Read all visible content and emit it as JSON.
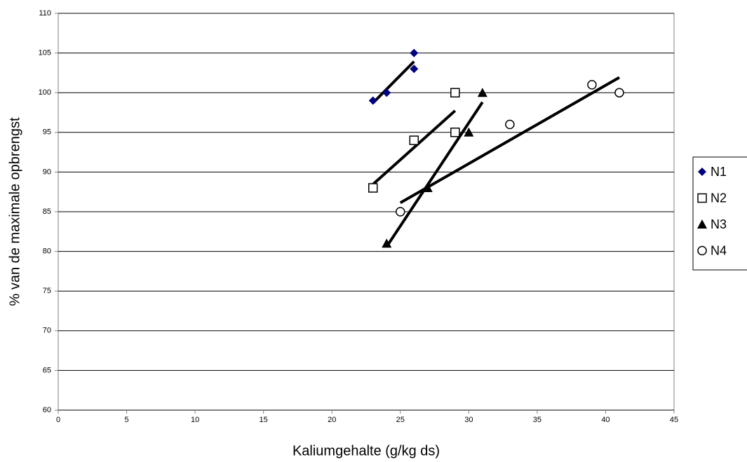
{
  "chart_data": {
    "type": "scatter",
    "x_label": "Kaliumgehalte (g/kg ds)",
    "y_label": "% van de maximale opbrengst",
    "xlim": [
      0,
      45
    ],
    "xticks": [
      0,
      5,
      10,
      15,
      20,
      25,
      30,
      35,
      40,
      45
    ],
    "ylim": [
      60,
      110
    ],
    "yticks": [
      60,
      65,
      70,
      75,
      80,
      85,
      90,
      95,
      100,
      105,
      110
    ],
    "grid": true,
    "trendline": true,
    "legend": "right",
    "series": [
      {
        "name": "N1",
        "color": "#000080",
        "marker": "diamond",
        "x": [
          23,
          24,
          26,
          26
        ],
        "values": [
          99,
          100,
          105,
          103
        ]
      },
      {
        "name": "N2",
        "color": "#000000",
        "marker": "square-open",
        "x": [
          23,
          26,
          29,
          29
        ],
        "values": [
          88,
          94,
          100,
          95
        ]
      },
      {
        "name": "N3",
        "color": "#000000",
        "marker": "triangle",
        "x": [
          24,
          27,
          30,
          31
        ],
        "values": [
          81,
          88,
          95,
          100
        ]
      },
      {
        "name": "N4",
        "color": "#000000",
        "marker": "circle-open",
        "x": [
          25,
          33,
          39,
          41
        ],
        "values": [
          85,
          96,
          101,
          100
        ]
      }
    ]
  }
}
